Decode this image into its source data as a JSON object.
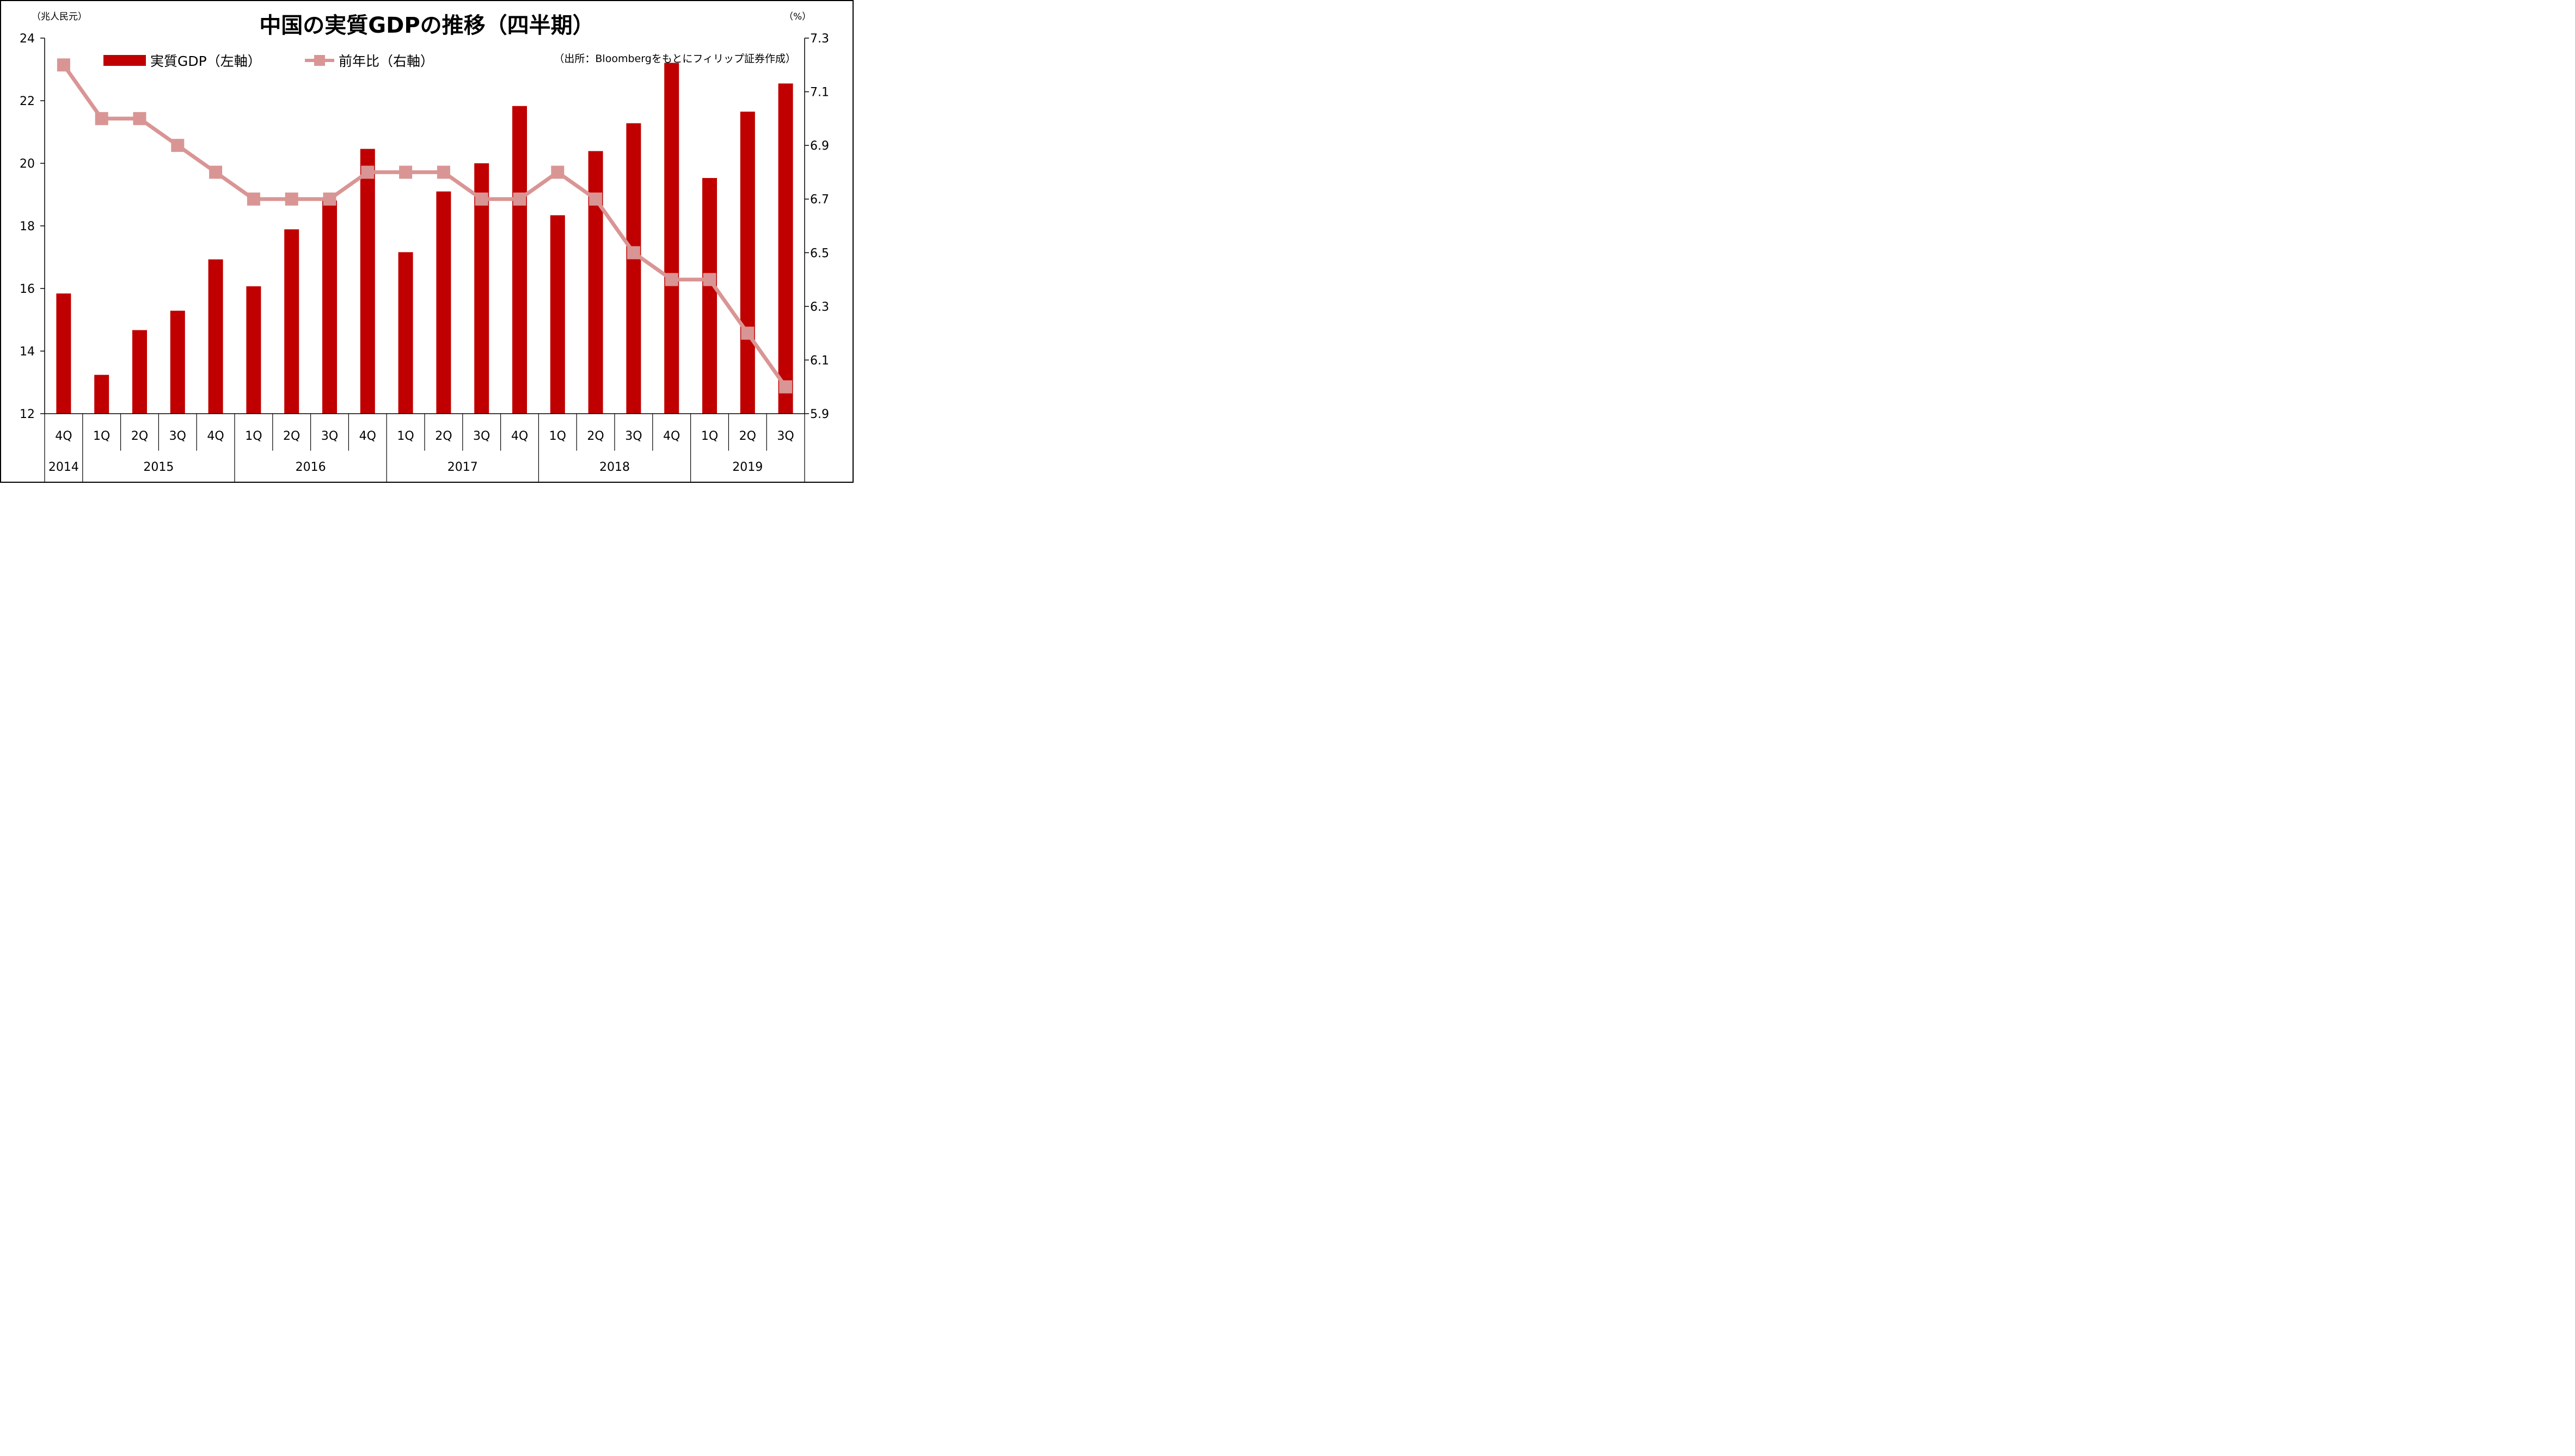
{
  "chart_data": {
    "type": "bar+line",
    "title": "中国の実質GDPの推移（四半期）",
    "left_unit": "（兆人民元）",
    "right_unit": "（%）",
    "source": "（出所：Bloombergをもとにフィリップ証券作成）",
    "quarters": [
      "4Q",
      "1Q",
      "2Q",
      "3Q",
      "4Q",
      "1Q",
      "2Q",
      "3Q",
      "4Q",
      "1Q",
      "2Q",
      "3Q",
      "4Q",
      "1Q",
      "2Q",
      "3Q",
      "4Q",
      "1Q",
      "2Q",
      "3Q"
    ],
    "years": [
      {
        "label": "2014",
        "start": 0,
        "count": 1
      },
      {
        "label": "2015",
        "start": 1,
        "count": 4
      },
      {
        "label": "2016",
        "start": 5,
        "count": 4
      },
      {
        "label": "2017",
        "start": 9,
        "count": 4
      },
      {
        "label": "2018",
        "start": 13,
        "count": 4
      },
      {
        "label": "2019",
        "start": 17,
        "count": 3
      }
    ],
    "series": [
      {
        "name": "実質GDP（左軸）",
        "type": "bar",
        "axis": "left",
        "color": "#c00000",
        "values": [
          15.84,
          13.24,
          14.67,
          15.29,
          16.93,
          16.07,
          17.89,
          18.81,
          20.46,
          17.16,
          19.1,
          20.0,
          21.83,
          18.34,
          20.39,
          21.28,
          23.21,
          19.53,
          21.65,
          22.55
        ]
      },
      {
        "name": "前年比（右軸）",
        "type": "line",
        "axis": "right",
        "color": "#d99594",
        "values": [
          7.2,
          7.0,
          7.0,
          6.9,
          6.8,
          6.7,
          6.7,
          6.7,
          6.8,
          6.8,
          6.8,
          6.7,
          6.7,
          6.8,
          6.7,
          6.5,
          6.4,
          6.4,
          6.2,
          6.0
        ]
      }
    ],
    "left_axis": {
      "min": 12,
      "max": 24,
      "ticks": [
        12,
        14,
        16,
        18,
        20,
        22,
        24
      ]
    },
    "right_axis": {
      "min": 5.9,
      "max": 7.3,
      "ticks": [
        "5.9",
        "6.1",
        "6.3",
        "6.5",
        "6.7",
        "6.9",
        "7.1",
        "7.3"
      ]
    },
    "grid": false,
    "legend": "top-left"
  }
}
